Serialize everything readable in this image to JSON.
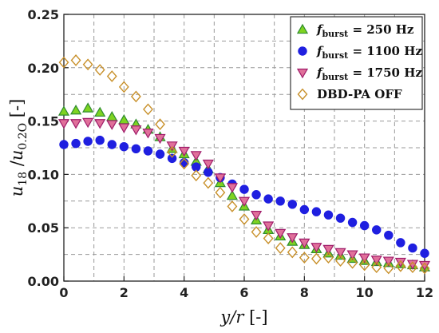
{
  "chart_data": {
    "type": "scatter",
    "xlabel": "y/r [-]",
    "ylabel": "u18/u0.2O [-]",
    "xlim": [
      0,
      12
    ],
    "ylim": [
      0,
      0.25
    ],
    "xticks": [
      "0",
      "2",
      "4",
      "6",
      "8",
      "10",
      "12"
    ],
    "yticks": [
      "0.00",
      "0.05",
      "0.10",
      "0.15",
      "0.20",
      "0.25"
    ],
    "grid": true,
    "legend_position": "top-right",
    "series": [
      {
        "name": "f_burst = 250 Hz",
        "legend_main": "f",
        "legend_sub": "burst",
        "legend_rest": " = 250 Hz",
        "marker": "triangle-up",
        "color": "#7ed321",
        "edge": "#2e8b2e",
        "x": [
          0.0,
          0.4,
          0.8,
          1.2,
          1.6,
          2.0,
          2.4,
          2.8,
          3.2,
          3.6,
          4.0,
          4.4,
          4.8,
          5.2,
          5.6,
          6.0,
          6.4,
          6.8,
          7.2,
          7.6,
          8.0,
          8.4,
          8.8,
          9.2,
          9.6,
          10.0,
          10.4,
          10.8,
          11.2,
          11.6,
          12.0
        ],
        "y": [
          0.159,
          0.16,
          0.162,
          0.158,
          0.154,
          0.151,
          0.147,
          0.142,
          0.135,
          0.124,
          0.119,
          0.112,
          0.105,
          0.092,
          0.08,
          0.07,
          0.057,
          0.048,
          0.042,
          0.037,
          0.034,
          0.03,
          0.026,
          0.024,
          0.021,
          0.019,
          0.018,
          0.017,
          0.016,
          0.015,
          0.013
        ]
      },
      {
        "name": "f_burst = 1100 Hz",
        "legend_main": "f",
        "legend_sub": "burst",
        "legend_rest": " = 1100 Hz",
        "marker": "circle",
        "color": "#1f1fe0",
        "edge": "#1f1fe0",
        "x": [
          0.0,
          0.4,
          0.8,
          1.2,
          1.6,
          2.0,
          2.4,
          2.8,
          3.2,
          3.6,
          4.0,
          4.4,
          4.8,
          5.2,
          5.6,
          6.0,
          6.4,
          6.8,
          7.2,
          7.6,
          8.0,
          8.4,
          8.8,
          9.2,
          9.6,
          10.0,
          10.4,
          10.8,
          11.2,
          11.6,
          12.0
        ],
        "y": [
          0.128,
          0.129,
          0.131,
          0.132,
          0.128,
          0.126,
          0.124,
          0.122,
          0.119,
          0.115,
          0.111,
          0.107,
          0.102,
          0.097,
          0.091,
          0.086,
          0.081,
          0.077,
          0.075,
          0.072,
          0.067,
          0.065,
          0.062,
          0.059,
          0.055,
          0.052,
          0.048,
          0.043,
          0.036,
          0.031,
          0.026
        ]
      },
      {
        "name": "f_burst = 1750 Hz",
        "legend_main": "f",
        "legend_sub": "burst",
        "legend_rest": " = 1750 Hz",
        "marker": "triangle-down",
        "color": "#e0709a",
        "edge": "#a01c6a",
        "x": [
          0.0,
          0.4,
          0.8,
          1.2,
          1.6,
          2.0,
          2.4,
          2.8,
          3.2,
          3.6,
          4.0,
          4.4,
          4.8,
          5.2,
          5.6,
          6.0,
          6.4,
          6.8,
          7.2,
          7.6,
          8.0,
          8.4,
          8.8,
          9.2,
          9.6,
          10.0,
          10.4,
          10.8,
          11.2,
          11.6,
          12.0
        ],
        "y": [
          0.148,
          0.148,
          0.149,
          0.148,
          0.147,
          0.144,
          0.142,
          0.139,
          0.134,
          0.127,
          0.122,
          0.118,
          0.11,
          0.097,
          0.088,
          0.075,
          0.062,
          0.052,
          0.045,
          0.041,
          0.036,
          0.032,
          0.03,
          0.027,
          0.025,
          0.022,
          0.02,
          0.019,
          0.018,
          0.016,
          0.015
        ]
      },
      {
        "name": "DBD-PA OFF",
        "legend_main": "DBD-PA OFF",
        "legend_sub": "",
        "legend_rest": "",
        "marker": "diamond",
        "color": "none",
        "edge": "#c8902a",
        "x": [
          0.0,
          0.4,
          0.8,
          1.2,
          1.6,
          2.0,
          2.4,
          2.8,
          3.2,
          3.6,
          4.0,
          4.4,
          4.8,
          5.2,
          5.6,
          6.0,
          6.4,
          6.8,
          7.2,
          7.6,
          8.0,
          8.4,
          8.8,
          9.2,
          9.6,
          10.0,
          10.4,
          10.8,
          11.2,
          11.6,
          12.0
        ],
        "y": [
          0.205,
          0.207,
          0.203,
          0.198,
          0.192,
          0.182,
          0.173,
          0.161,
          0.147,
          0.121,
          0.11,
          0.099,
          0.092,
          0.083,
          0.07,
          0.058,
          0.046,
          0.04,
          0.031,
          0.027,
          0.022,
          0.021,
          0.022,
          0.019,
          0.017,
          0.015,
          0.013,
          0.012,
          0.014,
          0.013,
          0.012
        ]
      }
    ]
  }
}
